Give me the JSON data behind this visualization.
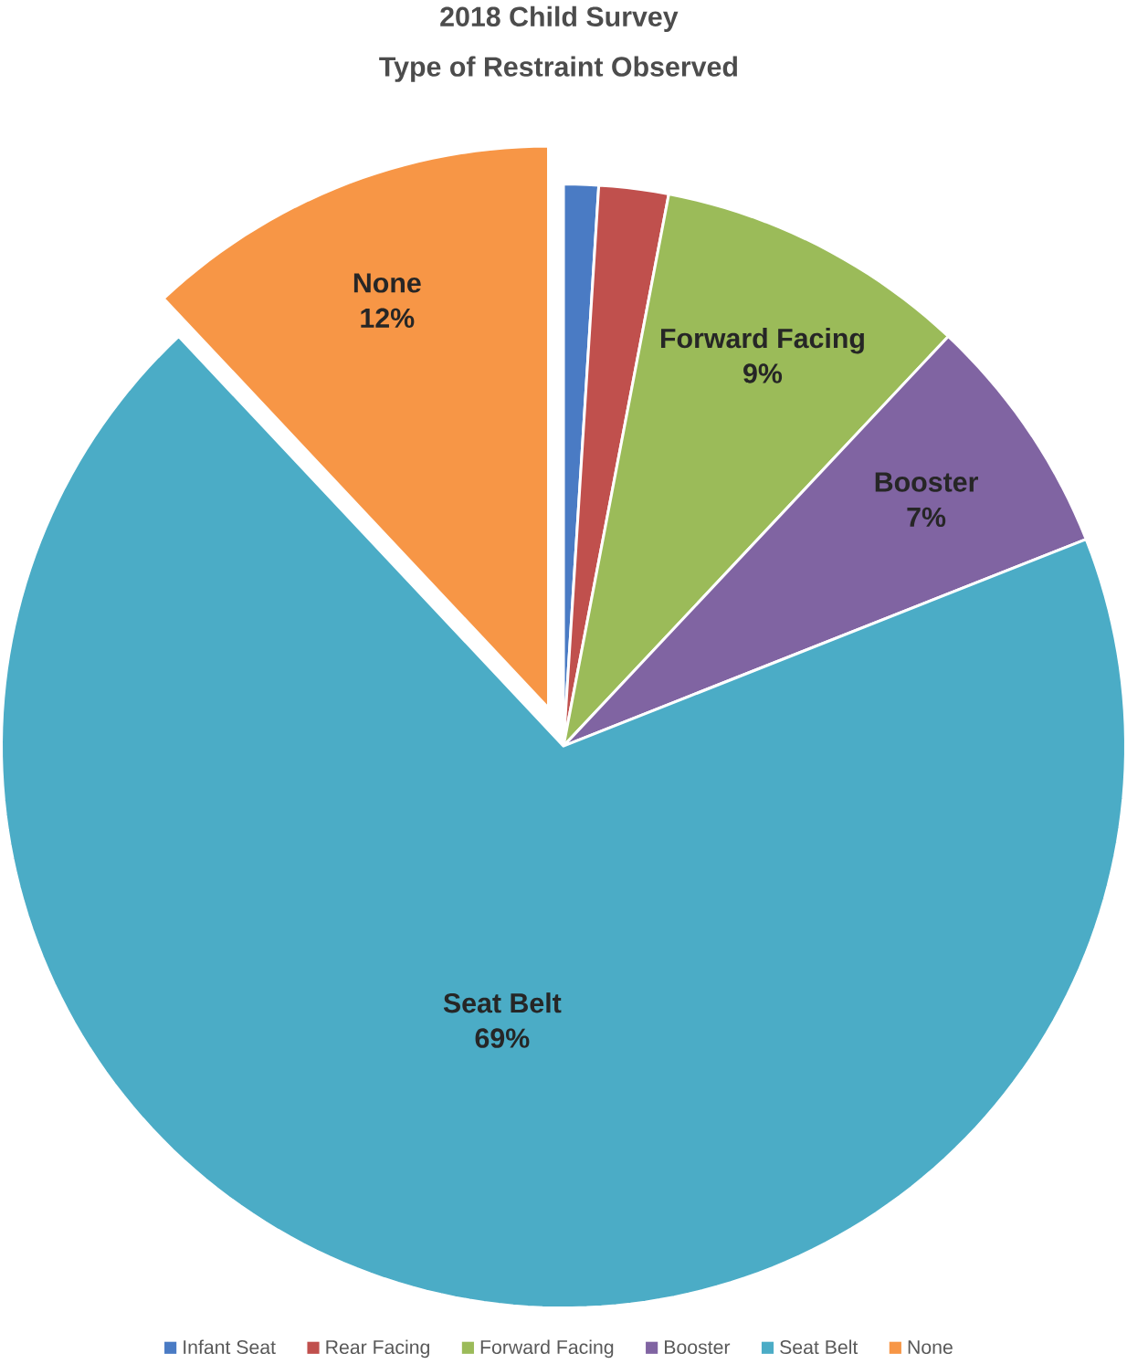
{
  "chart_data": {
    "type": "pie",
    "title": "2018 Child Survey",
    "subtitle": "Type of Restraint Observed",
    "categories": [
      "Infant Seat",
      "Rear Facing",
      "Forward Facing",
      "Booster",
      "Seat Belt",
      "None"
    ],
    "values": [
      1,
      2,
      9,
      7,
      69,
      12
    ],
    "colors": [
      "#4a7bc4",
      "#c0504d",
      "#9bbb59",
      "#8064a2",
      "#4bacc6",
      "#f79646"
    ],
    "value_labels": [
      null,
      null,
      "9%",
      "7%",
      "69%",
      "12%"
    ],
    "legend": "bottom"
  }
}
